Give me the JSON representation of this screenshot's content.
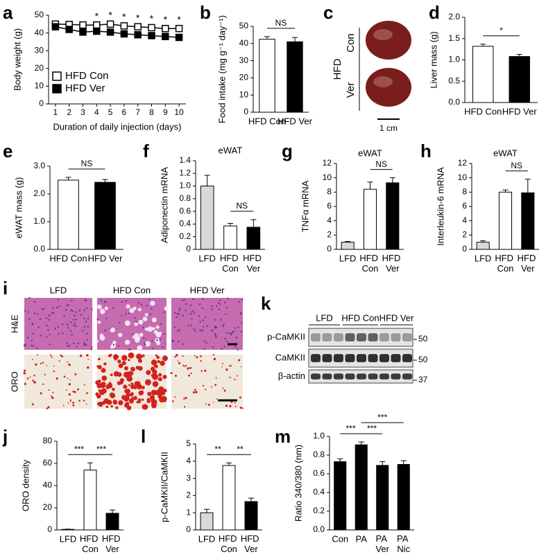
{
  "chart_data": [
    {
      "type": "line",
      "label": "a",
      "xlabel": "Duration of daily injection (days)",
      "ylabel": "Body weight (g)",
      "x": [
        1,
        2,
        3,
        4,
        5,
        6,
        7,
        8,
        9,
        10
      ],
      "xlim": [
        0.5,
        10.5
      ],
      "xticks": [
        1,
        2,
        3,
        4,
        5,
        6,
        7,
        8,
        9,
        10
      ],
      "ylim": [
        0,
        50
      ],
      "yticks": [
        0,
        10,
        20,
        30,
        40,
        50
      ],
      "legend": "lower left",
      "series": [
        {
          "name": "HFD Con",
          "color": "#ffffff",
          "values": [
            45,
            44.8,
            44.5,
            44.5,
            45,
            44,
            43.5,
            43,
            42.5,
            42.5
          ]
        },
        {
          "name": "HFD Ver",
          "color": "#000000",
          "values": [
            43.5,
            42,
            40.5,
            41,
            40.5,
            39.5,
            39,
            38.5,
            38,
            37.5
          ]
        }
      ],
      "annotations": [
        {
          "x": 4,
          "text": "*"
        },
        {
          "x": 5,
          "text": "*"
        },
        {
          "x": 6,
          "text": "*"
        },
        {
          "x": 7,
          "text": "*"
        },
        {
          "x": 8,
          "text": "*"
        },
        {
          "x": 9,
          "text": "*"
        },
        {
          "x": 10,
          "text": "*"
        }
      ]
    },
    {
      "type": "bar",
      "label": "b",
      "ylabel": "Food intake (mg g⁻¹ day⁻¹)",
      "categories": [
        "HFD Con",
        "HFD Ver"
      ],
      "values": [
        42.5,
        41
      ],
      "errors": [
        1.5,
        2.5
      ],
      "colors": [
        "#ffffff",
        "#000000"
      ],
      "ylim": [
        0,
        50
      ],
      "yticks": [
        0,
        10,
        20,
        30,
        40,
        50
      ],
      "brackets": [
        {
          "between": [
            "HFD Con",
            "HFD Ver"
          ],
          "text": "NS"
        }
      ]
    },
    {
      "type": "photo",
      "label": "c",
      "group": "HFD",
      "rows": [
        "Con",
        "Ver"
      ],
      "scale_bar": "1 cm"
    },
    {
      "type": "bar",
      "label": "d",
      "ylabel": "Liver mass (g)",
      "categories": [
        "HFD Con",
        "HFD Ver"
      ],
      "values": [
        1.32,
        1.08
      ],
      "errors": [
        0.05,
        0.05
      ],
      "colors": [
        "#ffffff",
        "#000000"
      ],
      "ylim": [
        0,
        2
      ],
      "yticks": [
        {
          "value": 0,
          "label": "0.0"
        },
        0.5,
        {
          "value": 1,
          "label": "1.0"
        },
        1.5,
        {
          "value": 2,
          "label": "2.0"
        }
      ],
      "brackets": [
        {
          "between": [
            "HFD Con",
            "HFD Ver"
          ],
          "text": "*"
        }
      ]
    },
    {
      "type": "bar",
      "label": "e",
      "ylabel": "eWAT mass (g)",
      "categories": [
        "HFD Con",
        "HFD Ver"
      ],
      "values": [
        2.5,
        2.42
      ],
      "errors": [
        0.1,
        0.1
      ],
      "colors": [
        "#ffffff",
        "#000000"
      ],
      "ylim": [
        0,
        3
      ],
      "yticks": [
        {
          "value": 0,
          "label": "0.0"
        },
        {
          "value": 1,
          "label": "1.0"
        },
        {
          "value": 2,
          "label": "2.0"
        },
        {
          "value": 3,
          "label": "3.0"
        }
      ],
      "brackets": [
        {
          "between": [
            "HFD Con",
            "HFD Ver"
          ],
          "text": "NS"
        }
      ]
    },
    {
      "type": "bar",
      "label": "f",
      "title": "eWAT",
      "ylabel": "Adiponectin mRNA",
      "categories": [
        "LFD",
        "HFD Con",
        "HFD Ver"
      ],
      "values": [
        1.0,
        0.37,
        0.35
      ],
      "errors": [
        0.17,
        0.04,
        0.12
      ],
      "colors": [
        "#d9d9d9",
        "#ffffff",
        "#000000"
      ],
      "ylim": [
        0,
        1.4
      ],
      "yticks": [
        0,
        0.2,
        0.4,
        0.6,
        0.8,
        {
          "value": 1,
          "label": "1.0"
        },
        1.2,
        1.4
      ],
      "brackets": [
        {
          "between": [
            "HFD Con",
            "HFD Ver"
          ],
          "text": "NS"
        }
      ]
    },
    {
      "type": "bar",
      "label": "g",
      "title": "eWAT",
      "ylabel": "TNFα mRNA",
      "categories": [
        "LFD",
        "HFD Con",
        "HFD Ver"
      ],
      "values": [
        1.0,
        8.4,
        9.3
      ],
      "errors": [
        0.1,
        1.0,
        0.7
      ],
      "colors": [
        "#d9d9d9",
        "#ffffff",
        "#000000"
      ],
      "ylim": [
        0,
        12
      ],
      "yticks": [
        0,
        2,
        4,
        6,
        8,
        10,
        12
      ],
      "brackets": [
        {
          "between": [
            "HFD Con",
            "HFD Ver"
          ],
          "text": "NS"
        }
      ]
    },
    {
      "type": "bar",
      "label": "h",
      "title": "eWAT",
      "ylabel": "Interleukin-6 mRNA",
      "categories": [
        "LFD",
        "HFD Con",
        "HFD Ver"
      ],
      "values": [
        1.0,
        8.0,
        7.9
      ],
      "errors": [
        0.2,
        0.3,
        1.9
      ],
      "colors": [
        "#d9d9d9",
        "#ffffff",
        "#000000"
      ],
      "ylim": [
        0,
        12
      ],
      "yticks": [
        0,
        2,
        4,
        6,
        8,
        10,
        12
      ],
      "brackets": [
        {
          "between": [
            "HFD Con",
            "HFD Ver"
          ],
          "text": "NS"
        }
      ]
    },
    {
      "type": "micrograph",
      "label": "i",
      "columns": [
        "LFD",
        "HFD Con",
        "HFD Ver"
      ],
      "rows": [
        "H&E",
        "ORO"
      ]
    },
    {
      "type": "blot",
      "label": "k",
      "groups": [
        "LFD",
        "HFD Con",
        "HFD Ver"
      ],
      "rows": [
        "p-CaMKII",
        "CaMKII",
        "β-actin"
      ],
      "markers": [
        50,
        50,
        37
      ]
    },
    {
      "type": "bar",
      "label": "j",
      "ylabel": "ORO density",
      "categories": [
        "LFD",
        "HFD Con",
        "HFD Ver"
      ],
      "values": [
        0.5,
        54,
        15
      ],
      "errors": [
        0.2,
        6.5,
        3
      ],
      "colors": [
        "#d9d9d9",
        "#ffffff",
        "#000000"
      ],
      "ylim": [
        0,
        80
      ],
      "yticks": [
        0,
        20,
        40,
        60,
        80
      ],
      "brackets": [
        {
          "between": [
            "LFD",
            "HFD Con"
          ],
          "text": "***"
        },
        {
          "between": [
            "HFD Con",
            "HFD Ver"
          ],
          "text": "***"
        }
      ]
    },
    {
      "type": "bar",
      "label": "l",
      "ylabel": "p-CaMKII/CaMKII",
      "categories": [
        "LFD",
        "HFD Con",
        "HFD Ver"
      ],
      "values": [
        1.0,
        3.75,
        1.65
      ],
      "errors": [
        0.2,
        0.15,
        0.2
      ],
      "colors": [
        "#d9d9d9",
        "#ffffff",
        "#000000"
      ],
      "ylim": [
        0,
        5
      ],
      "yticks": [
        0,
        1,
        2,
        3,
        4,
        5
      ],
      "brackets": [
        {
          "between": [
            "LFD",
            "HFD Con"
          ],
          "text": "**"
        },
        {
          "between": [
            "HFD Con",
            "HFD Ver"
          ],
          "text": "**"
        }
      ]
    },
    {
      "type": "bar",
      "label": "m",
      "ylabel": "Ratio 340/380 (nm)",
      "categories": [
        "Con",
        "PA",
        "PA Ver",
        "PA Nic"
      ],
      "values": [
        0.73,
        0.91,
        0.69,
        0.7
      ],
      "errors": [
        0.03,
        0.03,
        0.04,
        0.04
      ],
      "colors": [
        "#000000",
        "#000000",
        "#000000",
        "#000000"
      ],
      "ylim": [
        0,
        1
      ],
      "yticks": [
        {
          "value": 0,
          "label": "0.0"
        },
        0.2,
        0.4,
        0.6,
        0.8,
        {
          "value": 1,
          "label": "1.0"
        }
      ],
      "brackets": [
        {
          "between": [
            "Con",
            "PA"
          ],
          "text": "***"
        },
        {
          "between": [
            "PA",
            "PA Ver"
          ],
          "text": "***"
        },
        {
          "between": [
            "PA",
            "PA Nic"
          ],
          "text": "***"
        }
      ]
    }
  ]
}
